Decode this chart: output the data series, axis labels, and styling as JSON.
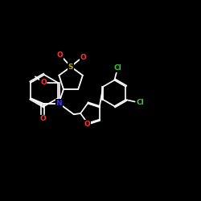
{
  "background_color": "#000000",
  "bond_color": "#ffffff",
  "atom_colors": {
    "O": "#ff3333",
    "S": "#bbaa00",
    "N": "#3333ff",
    "Cl": "#33cc33",
    "C": "#ffffff"
  },
  "figsize": [
    2.5,
    2.5
  ],
  "dpi": 100
}
